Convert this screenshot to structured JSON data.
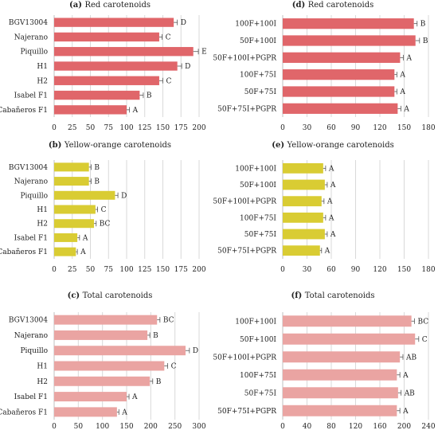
{
  "colors": {
    "red": "#e0666a",
    "yellow": "#d9cc33",
    "pink": "#eaa4a2",
    "grid": "#d9d9d9",
    "axis": "#bfbfbf",
    "error": "#555555"
  },
  "chart_data": [
    {
      "type": "bar",
      "orientation": "horizontal",
      "title": {
        "letter": "(a)",
        "text": "Red carotenoids"
      },
      "categories": [
        "BGV13004",
        "Najerano",
        "Piquillo",
        "H1",
        "H2",
        "Isabel F1",
        "Cabañeros F1"
      ],
      "values": [
        165,
        145,
        192,
        170,
        145,
        118,
        100
      ],
      "errors": [
        5,
        4,
        7,
        6,
        5,
        5,
        4
      ],
      "significance": [
        "D",
        "C",
        "E",
        "D",
        "C",
        "B",
        "A"
      ],
      "xlim": [
        0,
        200
      ],
      "ticks": [
        "0",
        "25",
        "50",
        "75",
        "100",
        "125",
        "150",
        "175",
        "200"
      ],
      "grid": true,
      "color_key": "red"
    },
    {
      "type": "bar",
      "orientation": "horizontal",
      "title": {
        "letter": "(b)",
        "text": "Yellow-orange carotenoids"
      },
      "categories": [
        "BGV13004",
        "Najerano",
        "Piquillo",
        "H1",
        "H2",
        "Isabel F1",
        "Cabañeros F1"
      ],
      "values": [
        48,
        48,
        84,
        57,
        55,
        32,
        30
      ],
      "errors": [
        3,
        3,
        4,
        3,
        3,
        3,
        2
      ],
      "significance": [
        "B",
        "B",
        "D",
        "C",
        "BC",
        "A",
        "A"
      ],
      "xlim": [
        0,
        200
      ],
      "ticks": [
        "0",
        "25",
        "50",
        "75",
        "100",
        "125",
        "150",
        "175",
        "200"
      ],
      "grid": true,
      "color_key": "yellow"
    },
    {
      "type": "bar",
      "orientation": "horizontal",
      "title": {
        "letter": "(c)",
        "text": "Total carotenoids"
      },
      "categories": [
        "BGV13004",
        "Najerano",
        "Piquillo",
        "H1",
        "H2",
        "Isabel F1",
        "Cabañeros F1"
      ],
      "values": [
        213,
        193,
        272,
        228,
        198,
        150,
        130
      ],
      "errors": [
        6,
        5,
        8,
        7,
        6,
        5,
        4
      ],
      "significance": [
        "BC",
        "B",
        "D",
        "C",
        "B",
        "A",
        "A"
      ],
      "xlim": [
        0,
        300
      ],
      "ticks": [
        "0",
        "50",
        "100",
        "150",
        "200",
        "250",
        "300"
      ],
      "grid": true,
      "color_key": "pink"
    },
    {
      "type": "bar",
      "orientation": "horizontal",
      "title": {
        "letter": "(d)",
        "text": "Red carotenoids"
      },
      "categories": [
        "100F+100I",
        "50F+100I",
        "50F+100I+PGPR",
        "100F+75I",
        "50F+75I",
        "50F+75I+PGPR"
      ],
      "values": [
        162,
        164,
        145,
        138,
        138,
        142
      ],
      "errors": [
        4,
        5,
        4,
        3,
        3,
        4
      ],
      "significance": [
        "B",
        "B",
        "A",
        "A",
        "A",
        "A"
      ],
      "xlim": [
        0,
        180
      ],
      "ticks": [
        "0",
        "30",
        "60",
        "90",
        "120",
        "150",
        "180"
      ],
      "grid": true,
      "color_key": "red"
    },
    {
      "type": "bar",
      "orientation": "horizontal",
      "title": {
        "letter": "(e)",
        "text": "Yellow-orange carotenoids"
      },
      "categories": [
        "100F+100I",
        "50F+100I",
        "50F+100I+PGPR",
        "100F+75I",
        "50F+75I",
        "50F+75I+PGPR"
      ],
      "values": [
        50,
        52,
        48,
        50,
        52,
        46
      ],
      "errors": [
        3,
        3,
        3,
        3,
        3,
        2
      ],
      "significance": [
        "A",
        "A",
        "A",
        "A",
        "A",
        "A"
      ],
      "xlim": [
        0,
        180
      ],
      "ticks": [
        "0",
        "30",
        "60",
        "90",
        "120",
        "150",
        "180"
      ],
      "grid": true,
      "color_key": "yellow"
    },
    {
      "type": "bar",
      "orientation": "horizontal",
      "title": {
        "letter": "(f)",
        "text": "Total carotenoids"
      },
      "categories": [
        "100F+100I",
        "50F+100I",
        "50F+100I+PGPR",
        "100F+75I",
        "50F+75I",
        "50F+75I+PGPR"
      ],
      "values": [
        212,
        218,
        193,
        188,
        190,
        188
      ],
      "errors": [
        5,
        6,
        5,
        5,
        5,
        5
      ],
      "significance": [
        "BC",
        "C",
        "AB",
        "A",
        "AB",
        "A"
      ],
      "xlim": [
        0,
        240
      ],
      "ticks": [
        "0",
        "40",
        "80",
        "120",
        "160",
        "200",
        "240"
      ],
      "grid": true,
      "color_key": "pink"
    }
  ]
}
